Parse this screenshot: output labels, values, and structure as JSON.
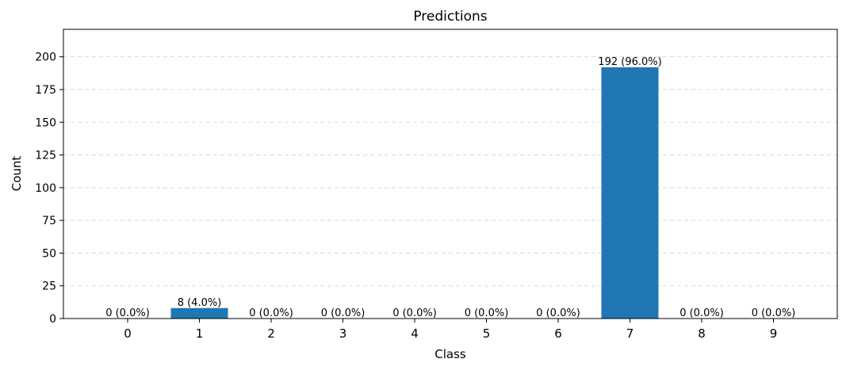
{
  "chart_data": {
    "type": "bar",
    "title": "Predictions",
    "xlabel": "Class",
    "ylabel": "Count",
    "categories": [
      "0",
      "1",
      "2",
      "3",
      "4",
      "5",
      "6",
      "7",
      "8",
      "9"
    ],
    "values": [
      0,
      8,
      0,
      0,
      0,
      0,
      0,
      192,
      0,
      0
    ],
    "data_labels": [
      "0 (0.0%)",
      "8 (4.0%)",
      "0 (0.0%)",
      "0 (0.0%)",
      "0 (0.0%)",
      "0 (0.0%)",
      "0 (0.0%)",
      "192 (96.0%)",
      "0 (0.0%)",
      "0 (0.0%)"
    ],
    "ylim": [
      0,
      221
    ],
    "yticks": [
      0,
      25,
      50,
      75,
      100,
      125,
      150,
      175,
      200
    ],
    "grid": "y-dashed",
    "colors": {
      "bar": "#1f77b4",
      "grid": "#d9d9d9",
      "axis": "#000000"
    }
  }
}
